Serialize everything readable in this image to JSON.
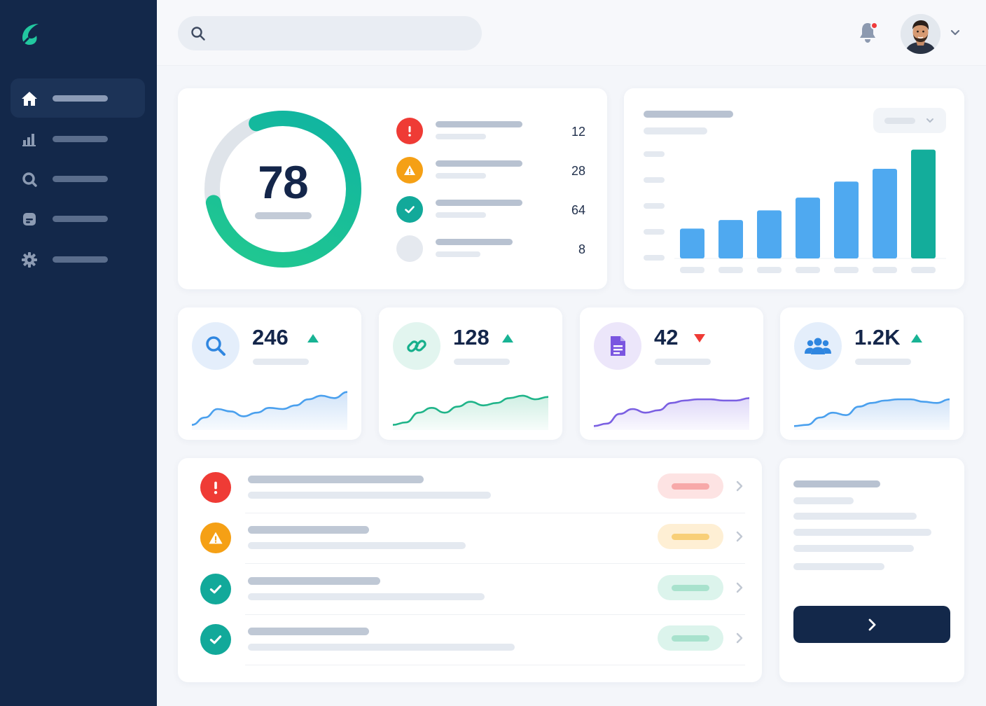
{
  "app": {
    "brand_color": "#22c8a0",
    "logo_icon": "leaf-logo-icon"
  },
  "sidebar": {
    "items": [
      {
        "icon": "home-icon",
        "active": true
      },
      {
        "icon": "bar-chart-icon",
        "active": false
      },
      {
        "icon": "search-icon",
        "active": false
      },
      {
        "icon": "message-icon",
        "active": false
      },
      {
        "icon": "gear-icon",
        "active": false
      }
    ]
  },
  "topbar": {
    "search_value": "",
    "search_icon": "search-icon",
    "notification_icon": "bell-icon",
    "has_unread_notification": true,
    "avatar_icon": "avatar",
    "menu_icon": "chevron-down-icon"
  },
  "score": {
    "value": "78",
    "progress": 0.78,
    "ring_colors": [
      "#22c8a0",
      "#10b5a0"
    ],
    "rows": [
      {
        "status": "error",
        "icon": "exclamation-icon",
        "color": "#ef3b35",
        "count": "12"
      },
      {
        "status": "warning",
        "icon": "warning-icon",
        "color": "#f5a015",
        "count": "28"
      },
      {
        "status": "ok",
        "icon": "check-icon",
        "color": "#12a99a",
        "count": "64"
      },
      {
        "status": "neutral",
        "icon": "blank-icon",
        "color": "#e5e9ef",
        "count": "8"
      }
    ]
  },
  "bar_chart": {
    "dropdown_icon": "chevron-down-icon",
    "chart_data": {
      "type": "bar",
      "categories": [
        "",
        "",
        "",
        "",
        "",
        "",
        ""
      ],
      "values": [
        28,
        36,
        45,
        57,
        72,
        84,
        102
      ],
      "highlight_index": 6,
      "colors": {
        "default": "#4fa9f0",
        "highlight": "#13ad9b"
      },
      "ylim": [
        0,
        105
      ],
      "grid": false
    }
  },
  "stats": [
    {
      "value": "246",
      "trend": "up",
      "icon": "magnifier-icon",
      "icon_bg": "#e4eefb",
      "icon_color": "#2f86e0",
      "line_color": "#4aa0ee",
      "fill_color": "#cfe2f8",
      "series": [
        4,
        16,
        30,
        26,
        18,
        24,
        32,
        30,
        36,
        46,
        52,
        48,
        58
      ]
    },
    {
      "value": "128",
      "trend": "up",
      "icon": "link-icon",
      "icon_bg": "#e2f5ef",
      "icon_color": "#17b08c",
      "line_color": "#1fb489",
      "fill_color": "#cdeee2",
      "series": [
        4,
        8,
        24,
        32,
        24,
        34,
        42,
        36,
        40,
        48,
        52,
        46,
        50
      ]
    },
    {
      "value": "42",
      "trend": "down",
      "icon": "document-icon",
      "icon_bg": "#ece6fa",
      "icon_color": "#7a55e0",
      "line_color": "#7a5fe2",
      "fill_color": "#ddd6f8",
      "series": [
        2,
        6,
        22,
        30,
        24,
        28,
        40,
        44,
        46,
        46,
        44,
        44,
        48
      ]
    },
    {
      "value": "1.2K",
      "trend": "up",
      "icon": "users-icon",
      "icon_bg": "#e4eefb",
      "icon_color": "#2f86e0",
      "line_color": "#4aa0ee",
      "fill_color": "#cfe2f8",
      "series": [
        2,
        4,
        16,
        24,
        20,
        34,
        40,
        44,
        46,
        46,
        42,
        40,
        46
      ]
    }
  ],
  "trend_colors": {
    "up": "#18b394",
    "down": "#ef3b35"
  },
  "alerts": [
    {
      "status": "error",
      "icon": "exclamation-icon",
      "color": "#ef3b35",
      "pill_bg": "#fde3e3",
      "pill_fg": "#f7a9a9"
    },
    {
      "status": "warning",
      "icon": "warning-icon",
      "color": "#f5a015",
      "pill_bg": "#feefd4",
      "pill_fg": "#f8cf78"
    },
    {
      "status": "ok",
      "icon": "check-icon",
      "color": "#12a99a",
      "pill_bg": "#dcf4ec",
      "pill_fg": "#a8e2cd"
    },
    {
      "status": "ok",
      "icon": "check-icon",
      "color": "#12a99a",
      "pill_bg": "#dcf4ec",
      "pill_fg": "#a8e2cd"
    }
  ],
  "side_card": {
    "button_icon": "chevron-right-icon"
  }
}
